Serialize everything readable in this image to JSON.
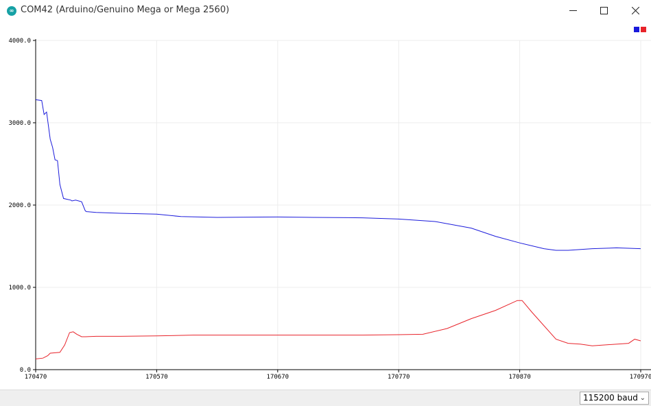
{
  "window": {
    "title": "COM42 (Arduino/Genuino Mega or Mega 2560)",
    "icon": "arduino-logo-icon"
  },
  "baud": {
    "selected": "115200 baud"
  },
  "colors": {
    "series1": "#1a1adb",
    "series2": "#e8232a",
    "grid": "#ececec",
    "axis": "#000000"
  },
  "chart_data": {
    "type": "line",
    "title": "",
    "xlabel": "",
    "ylabel": "",
    "xlim": [
      170470,
      170970
    ],
    "ylim": [
      0,
      4000
    ],
    "xticks": [
      "170470",
      "170570",
      "170670",
      "170770",
      "170870",
      "170970"
    ],
    "yticks": [
      "0.0",
      "1000.0",
      "2000.0",
      "3000.0",
      "4000.0"
    ],
    "grid": true,
    "legend": "top-right",
    "series": [
      {
        "color": "#1a1adb",
        "x": [
          170470,
          170475,
          170477,
          170479,
          170482,
          170484,
          170486,
          170488,
          170490,
          170493,
          170496,
          170499,
          170500,
          170503,
          170508,
          170511,
          170512,
          170520,
          170540,
          170570,
          170590,
          170620,
          170670,
          170700,
          170740,
          170770,
          170800,
          170830,
          170850,
          170870,
          170890,
          170900,
          170910,
          170930,
          170950,
          170970
        ],
        "y": [
          3280,
          3270,
          3100,
          3130,
          2800,
          2700,
          2550,
          2540,
          2250,
          2080,
          2070,
          2060,
          2050,
          2060,
          2040,
          1930,
          1920,
          1910,
          1900,
          1890,
          1860,
          1850,
          1855,
          1850,
          1845,
          1830,
          1800,
          1720,
          1620,
          1540,
          1470,
          1450,
          1450,
          1470,
          1480,
          1470
        ]
      },
      {
        "color": "#e8232a",
        "x": [
          170470,
          170476,
          170480,
          170482,
          170490,
          170494,
          170498,
          170501,
          170504,
          170508,
          170511,
          170520,
          170540,
          170570,
          170600,
          170670,
          170700,
          170740,
          170770,
          170790,
          170810,
          170830,
          170850,
          170868,
          170872,
          170880,
          170900,
          170910,
          170920,
          170930,
          170940,
          170960,
          170965,
          170970
        ],
        "y": [
          130,
          140,
          170,
          200,
          210,
          300,
          450,
          460,
          430,
          400,
          400,
          405,
          405,
          410,
          420,
          420,
          420,
          420,
          425,
          430,
          500,
          620,
          720,
          840,
          840,
          700,
          370,
          320,
          310,
          290,
          300,
          320,
          370,
          350
        ]
      }
    ]
  }
}
